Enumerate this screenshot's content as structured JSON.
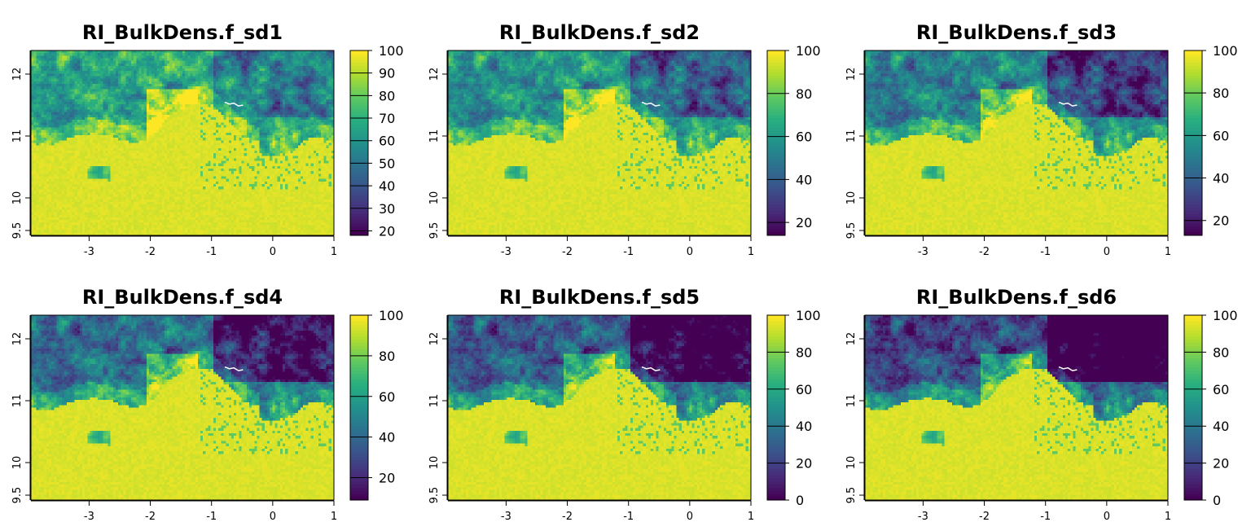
{
  "chart_data": [
    {
      "type": "heatmap",
      "title": "RI_BulkDens.f_sd1",
      "x_ticks": [
        -3,
        -2,
        -1,
        0,
        1
      ],
      "y_ticks": [
        "9.5",
        "10",
        "11",
        "12"
      ],
      "xlim": [
        -3.95,
        1.0
      ],
      "ylim": [
        9.4,
        12.45
      ],
      "colorbar": {
        "min": 18,
        "max": 100,
        "ticks": [
          100,
          90,
          80,
          70,
          60,
          50,
          40,
          30,
          20
        ]
      },
      "colormap": [
        "#440154",
        "#472D7B",
        "#3B528B",
        "#2C728E",
        "#21918C",
        "#28AE80",
        "#5EC962",
        "#ADDC30",
        "#FDE725"
      ]
    },
    {
      "type": "heatmap",
      "title": "RI_BulkDens.f_sd2",
      "x_ticks": [
        -3,
        -2,
        -1,
        0,
        1
      ],
      "y_ticks": [
        "9.5",
        "10",
        "11",
        "12"
      ],
      "xlim": [
        -3.95,
        1.0
      ],
      "ylim": [
        9.4,
        12.45
      ],
      "colorbar": {
        "min": 14,
        "max": 100,
        "ticks": [
          100,
          80,
          60,
          40,
          20
        ]
      },
      "colormap": [
        "#440154",
        "#472D7B",
        "#3B528B",
        "#2C728E",
        "#21918C",
        "#28AE80",
        "#5EC962",
        "#ADDC30",
        "#FDE725"
      ]
    },
    {
      "type": "heatmap",
      "title": "RI_BulkDens.f_sd3",
      "x_ticks": [
        -3,
        -2,
        -1,
        0,
        1
      ],
      "y_ticks": [
        "9.5",
        "10",
        "11",
        "12"
      ],
      "xlim": [
        -3.95,
        1.0
      ],
      "ylim": [
        9.4,
        12.45
      ],
      "colorbar": {
        "min": 13,
        "max": 100,
        "ticks": [
          100,
          80,
          60,
          40,
          20
        ]
      },
      "colormap": [
        "#440154",
        "#472D7B",
        "#3B528B",
        "#2C728E",
        "#21918C",
        "#28AE80",
        "#5EC962",
        "#ADDC30",
        "#FDE725"
      ]
    },
    {
      "type": "heatmap",
      "title": "RI_BulkDens.f_sd4",
      "x_ticks": [
        -3,
        -2,
        -1,
        0,
        1
      ],
      "y_ticks": [
        "9.5",
        "10",
        "11",
        "12"
      ],
      "xlim": [
        -3.95,
        1.0
      ],
      "ylim": [
        9.4,
        12.45
      ],
      "colorbar": {
        "min": 9,
        "max": 100,
        "ticks": [
          100,
          80,
          60,
          40,
          20
        ]
      },
      "colormap": [
        "#440154",
        "#472D7B",
        "#3B528B",
        "#2C728E",
        "#21918C",
        "#28AE80",
        "#5EC962",
        "#ADDC30",
        "#FDE725"
      ]
    },
    {
      "type": "heatmap",
      "title": "RI_BulkDens.f_sd5",
      "x_ticks": [
        -3,
        -2,
        -1,
        0,
        1
      ],
      "y_ticks": [
        "9.5",
        "10",
        "11",
        "12"
      ],
      "xlim": [
        -3.95,
        1.0
      ],
      "ylim": [
        9.4,
        12.45
      ],
      "colorbar": {
        "min": 0,
        "max": 100,
        "ticks": [
          100,
          80,
          60,
          40,
          20,
          0
        ]
      },
      "colormap": [
        "#440154",
        "#472D7B",
        "#3B528B",
        "#2C728E",
        "#21918C",
        "#28AE80",
        "#5EC962",
        "#ADDC30",
        "#FDE725"
      ]
    },
    {
      "type": "heatmap",
      "title": "RI_BulkDens.f_sd6",
      "x_ticks": [
        -3,
        -2,
        -1,
        0,
        1
      ],
      "y_ticks": [
        "9.5",
        "10",
        "11",
        "12"
      ],
      "xlim": [
        -3.95,
        1.0
      ],
      "ylim": [
        9.4,
        12.45
      ],
      "colorbar": {
        "min": 0,
        "max": 100,
        "ticks": [
          100,
          80,
          60,
          40,
          20,
          0
        ]
      },
      "colormap": [
        "#440154",
        "#472D7B",
        "#3B528B",
        "#2C728E",
        "#21918C",
        "#28AE80",
        "#5EC962",
        "#ADDC30",
        "#FDE725"
      ]
    }
  ]
}
